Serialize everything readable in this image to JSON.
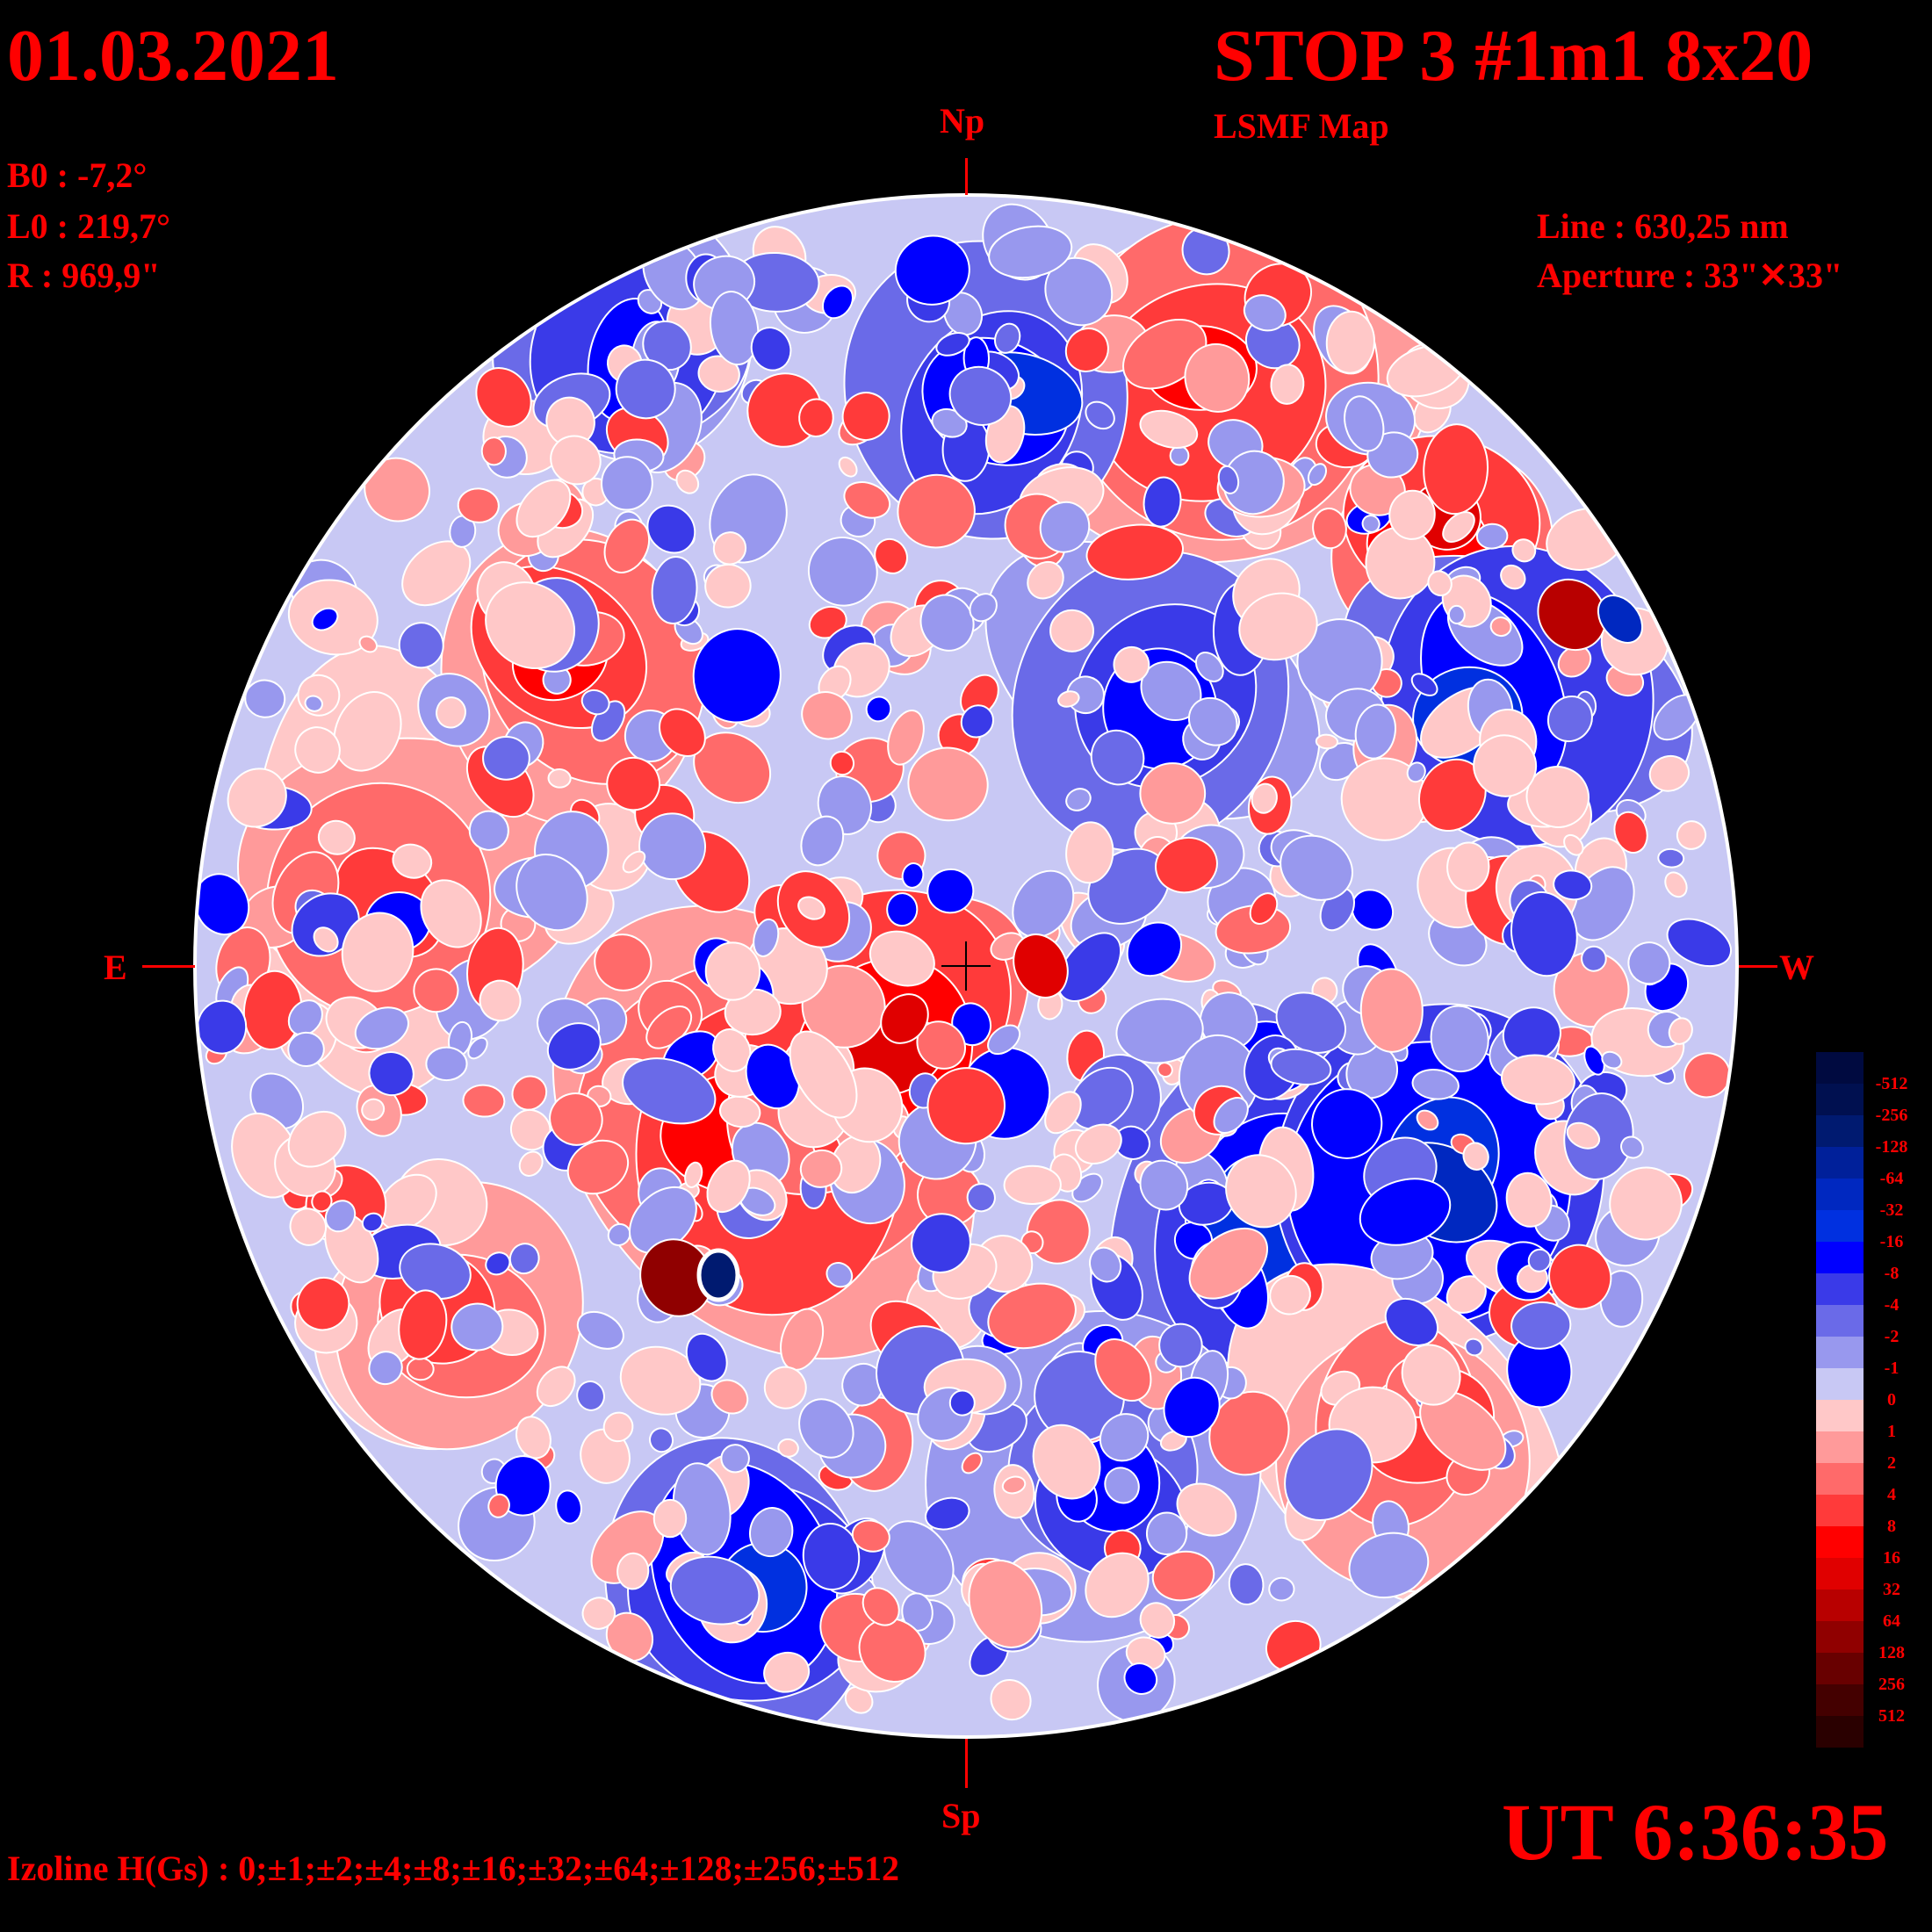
{
  "header": {
    "date": "01.03.2021",
    "title": "STOP 3 #1m1 8x20",
    "subtitle": "LSMF  Map"
  },
  "ephemeris": {
    "b0": "B0 : -7,2°",
    "l0": "L0 : 219,7°",
    "r": "R  : 969,9\""
  },
  "instrument": {
    "line": "Line :  630,25 nm",
    "aperture": "Aperture : 33\"✕33\""
  },
  "directions": {
    "north": "Np",
    "south": "Sp",
    "east": "E",
    "west": "W"
  },
  "time": "UT 6:36:35",
  "izoline": "Izoline H(Gs) : 0;±1;±2;±4;±8;±16;±32;±64;±128;±256;±512",
  "colorbar": {
    "labels": [
      "-512",
      "-256",
      "-128",
      "-64",
      "-32",
      "-16",
      "-8",
      "-4",
      "-2",
      "-1",
      "0",
      "1",
      "2",
      "4",
      "8",
      "16",
      "32",
      "64",
      "128",
      "256",
      "512"
    ],
    "colors": [
      "#000a40",
      "#001050",
      "#001a70",
      "#00209a",
      "#0028c0",
      "#0030e0",
      "#0000ff",
      "#3a3ae8",
      "#6a6ae8",
      "#9898ee",
      "#c8c8f4",
      "#ffc8c8",
      "#ff9a9a",
      "#ff6a6a",
      "#ff3a3a",
      "#ff0000",
      "#e00000",
      "#b80000",
      "#900000",
      "#680000",
      "#440000",
      "#2a0000"
    ]
  }
}
